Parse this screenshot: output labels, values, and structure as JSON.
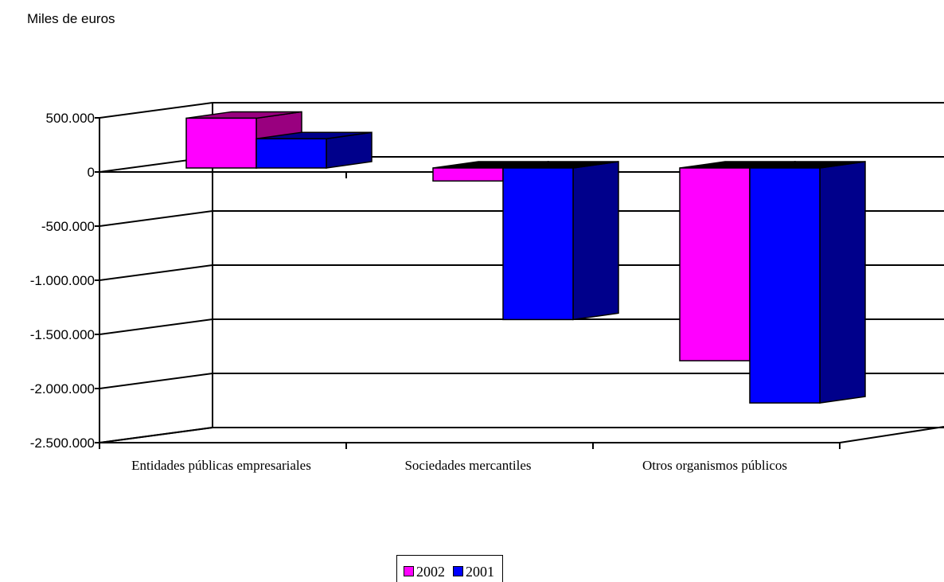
{
  "chart_data": {
    "type": "bar",
    "style": "3d-clustered",
    "unit_label": "Miles de euros",
    "categories": [
      "Entidades públicas empresariales",
      "Sociedades mercantiles",
      "Otros organismos públicos"
    ],
    "series": [
      {
        "name": "2002",
        "color": "#ff00ff",
        "side_color": "#99007f",
        "values": [
          460000,
          -120000,
          -1780000
        ]
      },
      {
        "name": "2001",
        "color": "#0000ff",
        "side_color": "#00008b",
        "values": [
          270000,
          -1400000,
          -2170000
        ]
      }
    ],
    "yticks": [
      {
        "value": 500000,
        "label": "500.000"
      },
      {
        "value": 0,
        "label": "0"
      },
      {
        "value": -500000,
        "label": "-500.000"
      },
      {
        "value": -1000000,
        "label": "-1.000.000"
      },
      {
        "value": -1500000,
        "label": "-1.500.000"
      },
      {
        "value": -2000000,
        "label": "-2.000.000"
      },
      {
        "value": -2500000,
        "label": "-2.500.000"
      }
    ],
    "ylim": [
      -2500000,
      500000
    ],
    "grid": true,
    "legend_position": "bottom"
  }
}
